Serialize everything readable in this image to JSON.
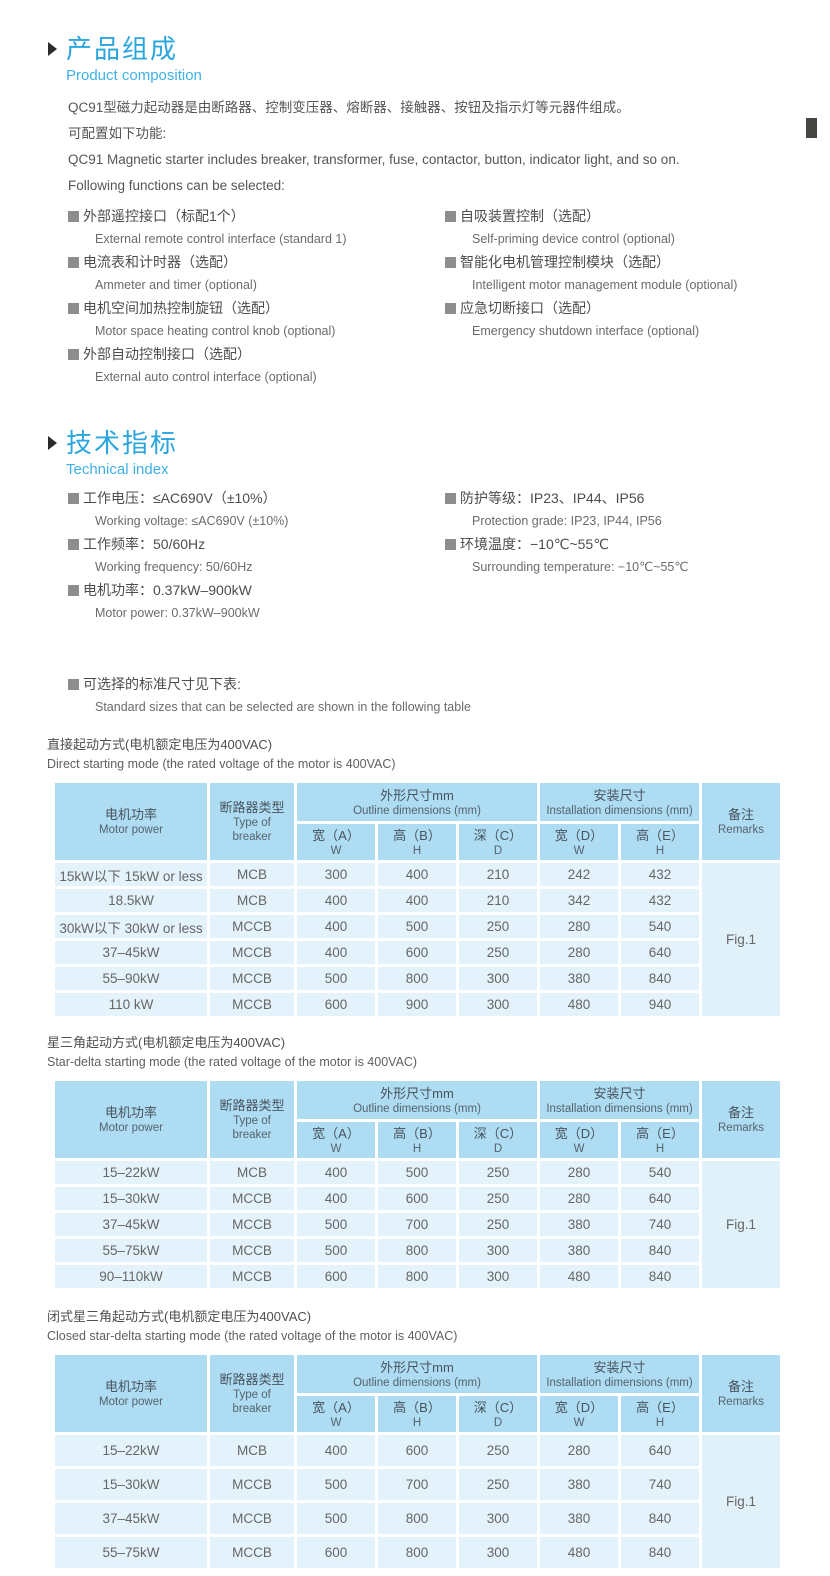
{
  "colors": {
    "accent_blue": "#2aa5de",
    "subtitle_blue": "#3fb0e6",
    "table_header_bg": "#aedcf2",
    "table_row_bg": "#e3f2fb",
    "bullet_gray": "#8d8d8d",
    "text_gray": "#4f4f4f"
  },
  "s1": {
    "title_cn": "产品组成",
    "title_en": "Product composition",
    "paragraphs": [
      "QC91型磁力起动器是由断路器、控制变压器、熔断器、接触器、按钮及指示灯等元器件组成。",
      "可配置如下功能:",
      "QC91 Magnetic starter includes breaker, transformer, fuse, contactor, button, indicator light, and so on.",
      "Following functions can be selected:"
    ],
    "features_left": [
      {
        "cn": "外部遥控接口（标配1个）",
        "en": "External remote control interface (standard 1)"
      },
      {
        "cn": "电流表和计时器（选配）",
        "en": "Ammeter and timer (optional)"
      },
      {
        "cn": "电机空间加热控制旋钮（选配）",
        "en": "Motor space heating control knob (optional)"
      },
      {
        "cn": "外部自动控制接口（选配）",
        "en": "External auto control interface (optional)"
      }
    ],
    "features_right": [
      {
        "cn": "自吸装置控制（选配）",
        "en": "Self-priming device control (optional)"
      },
      {
        "cn": "智能化电机管理控制模块（选配）",
        "en": "Intelligent motor management module (optional)"
      },
      {
        "cn": "应急切断接口（选配）",
        "en": "Emergency shutdown interface (optional)"
      }
    ]
  },
  "s2": {
    "title_cn": "技术指标",
    "title_en": "Technical index",
    "specs_left": [
      {
        "cn": "工作电压：≤AC690V（±10%）",
        "en": "Working voltage: ≤AC690V (±10%)"
      },
      {
        "cn": "工作频率：50/60Hz",
        "en": "Working frequency: 50/60Hz"
      },
      {
        "cn": "电机功率：0.37kW–900kW",
        "en": "Motor power: 0.37kW–900kW"
      }
    ],
    "specs_right": [
      {
        "cn": "防护等级：IP23、IP44、IP56",
        "en": "Protection grade: IP23, IP44, IP56"
      },
      {
        "cn": "环境温度：−10℃~55℃",
        "en": "Surrounding temperature: −10℃~55℃"
      }
    ],
    "note_cn": "可选择的标准尺寸见下表:",
    "note_en": "Standard sizes that can be selected are shown in the following table"
  },
  "thead": {
    "motor_cn": "电机功率",
    "motor_en": "Motor power",
    "breaker_cn": "断路器类型",
    "breaker_en1": "Type of",
    "breaker_en2": "breaker",
    "outline_cn": "外形尺寸mm",
    "outline_en": "Outline dimensions (mm)",
    "install_cn": "安装尺寸",
    "install_en": "Installation dimensions (mm)",
    "remarks_cn": "备注",
    "remarks_en": "Remarks",
    "cols": [
      {
        "cn": "宽（A）",
        "en": "W"
      },
      {
        "cn": "高（B）",
        "en": "H"
      },
      {
        "cn": "深（C）",
        "en": "D"
      },
      {
        "cn": "宽（D）",
        "en": "W"
      },
      {
        "cn": "高（E）",
        "en": "H"
      }
    ]
  },
  "tables": [
    {
      "caption_cn": "直接起动方式(电机额定电压为400VAC)",
      "caption_en": "Direct starting mode (the rated voltage of the motor is 400VAC)",
      "remark": "Fig.1",
      "rows": [
        [
          "15kW以下 15kW or less",
          "MCB",
          "300",
          "400",
          "210",
          "242",
          "432"
        ],
        [
          "18.5kW",
          "MCB",
          "400",
          "400",
          "210",
          "342",
          "432"
        ],
        [
          "30kW以下 30kW or less",
          "MCCB",
          "400",
          "500",
          "250",
          "280",
          "540"
        ],
        [
          "37–45kW",
          "MCCB",
          "400",
          "600",
          "250",
          "280",
          "640"
        ],
        [
          "55–90kW",
          "MCCB",
          "500",
          "800",
          "300",
          "380",
          "840"
        ],
        [
          "110 kW",
          "MCCB",
          "600",
          "900",
          "300",
          "480",
          "940"
        ]
      ]
    },
    {
      "caption_cn": "星三角起动方式(电机额定电压为400VAC)",
      "caption_en": "Star-delta starting mode (the rated voltage of the motor is 400VAC)",
      "remark": "Fig.1",
      "rows": [
        [
          "15–22kW",
          "MCB",
          "400",
          "500",
          "250",
          "280",
          "540"
        ],
        [
          "15–30kW",
          "MCCB",
          "400",
          "600",
          "250",
          "280",
          "640"
        ],
        [
          "37–45kW",
          "MCCB",
          "500",
          "700",
          "250",
          "380",
          "740"
        ],
        [
          "55–75kW",
          "MCCB",
          "500",
          "800",
          "300",
          "380",
          "840"
        ],
        [
          "90–110kW",
          "MCCB",
          "600",
          "800",
          "300",
          "480",
          "840"
        ]
      ]
    },
    {
      "caption_cn": "闭式星三角起动方式(电机额定电压为400VAC)",
      "caption_en": "Closed star-delta starting mode (the rated voltage of the motor is 400VAC)",
      "remark": "Fig.1",
      "rows": [
        [
          "15–22kW",
          "MCB",
          "400",
          "600",
          "250",
          "280",
          "640"
        ],
        [
          "15–30kW",
          "MCCB",
          "500",
          "700",
          "250",
          "380",
          "740"
        ],
        [
          "37–45kW",
          "MCCB",
          "500",
          "800",
          "300",
          "380",
          "840"
        ],
        [
          "55–75kW",
          "MCCB",
          "600",
          "800",
          "300",
          "480",
          "840"
        ]
      ]
    }
  ]
}
